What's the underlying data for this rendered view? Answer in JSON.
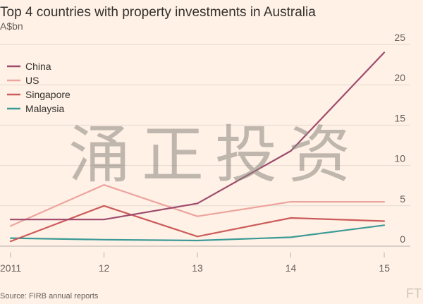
{
  "chart_data": {
    "type": "line",
    "title": "Top 4 countries with property investments in Australia",
    "subtitle": "A$bn",
    "xlabel": "",
    "ylabel": "",
    "x": [
      "2011",
      "12",
      "13",
      "14",
      "15"
    ],
    "ylim": [
      0,
      25
    ],
    "y_ticks": [
      "0",
      "5",
      "10",
      "15",
      "20",
      "25"
    ],
    "grid": true,
    "legend_position": "top-left",
    "series": [
      {
        "name": "China",
        "color": "#9e4b6e",
        "values": [
          3.3,
          3.3,
          5.3,
          11.8,
          24.0
        ]
      },
      {
        "name": "US",
        "color": "#eda49f",
        "values": [
          2.5,
          7.6,
          3.7,
          5.5,
          5.5
        ]
      },
      {
        "name": "Singapore",
        "color": "#cc5b5b",
        "values": [
          0.6,
          5.0,
          1.2,
          3.5,
          3.1
        ]
      },
      {
        "name": "Malaysia",
        "color": "#3c9a96",
        "values": [
          1.0,
          0.8,
          0.7,
          1.1,
          2.6
        ]
      }
    ]
  },
  "source": "Source: FIRB annual reports",
  "watermark": "涌正投资",
  "logo": "FT"
}
